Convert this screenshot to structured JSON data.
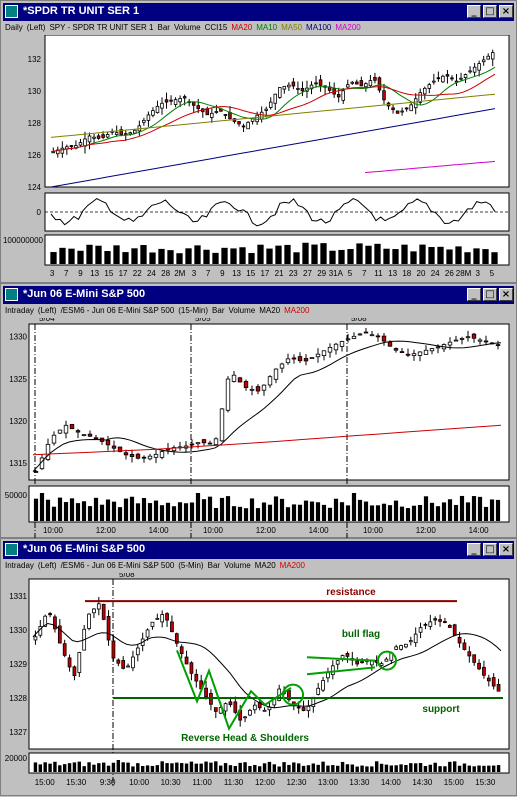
{
  "windows": [
    {
      "title": "*SPDR TR UNIT SER 1",
      "legend": [
        {
          "t": "Daily",
          "c": "#000000"
        },
        {
          "t": "(Left)",
          "c": "#000000"
        },
        {
          "t": "SPY - SPDR TR UNIT SER 1",
          "c": "#000000"
        },
        {
          "t": "Bar",
          "c": "#000000"
        },
        {
          "t": "Volume",
          "c": "#000000"
        },
        {
          "t": "CCI15",
          "c": "#000000"
        },
        {
          "t": "MA20",
          "c": "#cc0000"
        },
        {
          "t": "MA10",
          "c": "#008000"
        },
        {
          "t": "MA50",
          "c": "#808000"
        },
        {
          "t": "MA100",
          "c": "#000080"
        },
        {
          "t": "MA200",
          "c": "#cc00cc"
        }
      ]
    },
    {
      "title": "*Jun 06  E-Mini S&P 500",
      "legend": [
        {
          "t": "Intraday",
          "c": "#000000"
        },
        {
          "t": "(Left)",
          "c": "#000000"
        },
        {
          "t": "/ESM6 - Jun 06  E-Mini S&P 500",
          "c": "#000000"
        },
        {
          "t": "(15-Min)",
          "c": "#000000"
        },
        {
          "t": "Bar",
          "c": "#000000"
        },
        {
          "t": "Volume",
          "c": "#000000"
        },
        {
          "t": "MA20",
          "c": "#000000"
        },
        {
          "t": "MA200",
          "c": "#cc0000"
        }
      ]
    },
    {
      "title": "*Jun 06  E-Mini S&P 500",
      "legend": [
        {
          "t": "Intraday",
          "c": "#000000"
        },
        {
          "t": "(Left)",
          "c": "#000000"
        },
        {
          "t": "/ESM6 - Jun 06  E-Mini S&P 500",
          "c": "#000000"
        },
        {
          "t": "(5-Min)",
          "c": "#000000"
        },
        {
          "t": "Bar",
          "c": "#000000"
        },
        {
          "t": "Volume",
          "c": "#000000"
        },
        {
          "t": "MA20",
          "c": "#000000"
        },
        {
          "t": "MA200",
          "c": "#cc0000"
        }
      ]
    }
  ],
  "buttons": {
    "min": "_",
    "max": "□",
    "close": "×"
  },
  "chart_data": [
    {
      "type": "candlestick",
      "title": "SPY - SPDR TR UNIT SER 1 (Daily)",
      "ylim": [
        124,
        133.5
      ],
      "yticks": [
        124,
        126,
        128,
        130,
        132
      ],
      "xticks": [
        "3",
        "7",
        "9",
        "13",
        "15",
        "17",
        "22",
        "24",
        "28",
        "2M",
        "3",
        "7",
        "9",
        "13",
        "15",
        "17",
        "21",
        "23",
        "27",
        "29",
        "31A",
        "5",
        "7",
        "11",
        "13",
        "18",
        "20",
        "24",
        "26",
        "28M",
        "3",
        "5"
      ],
      "close_path": [
        126.2,
        126.5,
        126.6,
        127.2,
        127.0,
        127.5,
        127.2,
        127.6,
        128.5,
        129.2,
        129.4,
        129.6,
        129.0,
        128.5,
        128.8,
        128.2,
        127.8,
        128.4,
        128.9,
        130.2,
        130.4,
        130.0,
        130.5,
        130.2,
        129.6,
        130.6,
        130.3,
        130.8,
        129.2,
        128.6,
        129.0,
        130.0,
        130.6,
        131.0,
        130.6,
        131.2,
        131.8,
        132.4
      ],
      "ma_lines": {
        "MA10": {
          "color": "#008000",
          "start": 127.0,
          "end": 131.0
        },
        "MA20": {
          "color": "#cc0000",
          "start": 127.8,
          "end": 130.6
        },
        "MA50": {
          "color": "#808000",
          "start": 127.1,
          "end": 129.8
        },
        "MA100": {
          "color": "#000080",
          "start": 124.0,
          "end": 128.9
        },
        "MA200": {
          "color": "#cc00cc",
          "start": 124.9,
          "end": 125.6
        }
      },
      "volume_label": "100000000",
      "cci_zero_label": "0"
    },
    {
      "type": "candlestick",
      "title": "/ESM6 - Jun 06 E-Mini S&P 500 (15-Min)",
      "ylim": [
        1313,
        1331.5
      ],
      "yticks": [
        1315,
        1320,
        1325,
        1330
      ],
      "day_labels": [
        "5/04",
        "5/05",
        "5/08"
      ],
      "xticks": [
        "10:00",
        "12:00",
        "14:00",
        "10:00",
        "12:00",
        "14:00",
        "10:00",
        "12:00",
        "14:00"
      ],
      "close_path": [
        1314,
        1318,
        1319.5,
        1318.5,
        1318,
        1317,
        1316,
        1315.5,
        1316,
        1316.8,
        1317,
        1317.5,
        1317.2,
        1326,
        1324,
        1323.5,
        1326,
        1327.5,
        1327,
        1328,
        1329,
        1329.8,
        1330.5,
        1330,
        1328.5,
        1327.8,
        1328.3,
        1328.8,
        1329.5,
        1330,
        1329.5,
        1329
      ],
      "volume_label": "50000"
    },
    {
      "type": "candlestick",
      "title": "/ESM6 - Jun 06 E-Mini S&P 500 (5-Min)",
      "ylim": [
        1326.5,
        1331.5
      ],
      "yticks": [
        1327,
        1328,
        1329,
        1330,
        1331
      ],
      "day_label": "5/08",
      "xticks": [
        "15:00",
        "15:30",
        "9:30",
        "10:00",
        "10:30",
        "11:00",
        "11:30",
        "12:00",
        "12:30",
        "13:00",
        "13:30",
        "14:00",
        "14:30",
        "15:00",
        "15:30"
      ],
      "close_path": [
        1329.8,
        1330.6,
        1329.5,
        1328.6,
        1330.4,
        1330.8,
        1329.2,
        1328.8,
        1329.5,
        1330.2,
        1330.5,
        1329.6,
        1328.8,
        1328.2,
        1327.6,
        1327.9,
        1327.3,
        1327.8,
        1327.6,
        1328.3,
        1327.8,
        1327.6,
        1328.3,
        1328.9,
        1329.3,
        1329.0,
        1329.1,
        1329.0,
        1329.5,
        1329.6,
        1330.1,
        1330.3,
        1330.2,
        1329.6,
        1329.1,
        1328.6,
        1328.2
      ],
      "volume_label": "20000",
      "annotations": [
        {
          "text": "resistance",
          "color": "#8b0000"
        },
        {
          "text": "bull flag",
          "color": "#006400"
        },
        {
          "text": "support",
          "color": "#006400"
        },
        {
          "text": "Reverse Head & Shoulders",
          "color": "#006400"
        }
      ],
      "levels": {
        "resistance": 1330.85,
        "support": 1328.0
      }
    }
  ]
}
